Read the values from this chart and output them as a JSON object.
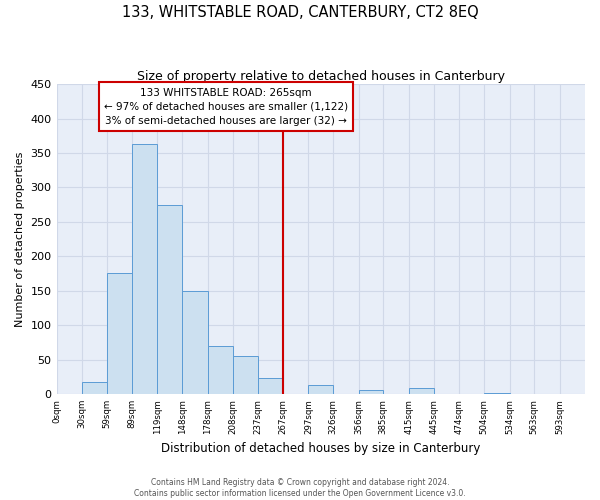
{
  "title": "133, WHITSTABLE ROAD, CANTERBURY, CT2 8EQ",
  "subtitle": "Size of property relative to detached houses in Canterbury",
  "xlabel": "Distribution of detached houses by size in Canterbury",
  "ylabel": "Number of detached properties",
  "bin_labels": [
    "0sqm",
    "30sqm",
    "59sqm",
    "89sqm",
    "119sqm",
    "148sqm",
    "178sqm",
    "208sqm",
    "237sqm",
    "267sqm",
    "297sqm",
    "326sqm",
    "356sqm",
    "385sqm",
    "415sqm",
    "445sqm",
    "474sqm",
    "504sqm",
    "534sqm",
    "563sqm",
    "593sqm"
  ],
  "bin_edges": [
    0,
    30,
    59,
    89,
    119,
    148,
    178,
    208,
    237,
    267,
    297,
    326,
    356,
    385,
    415,
    445,
    474,
    504,
    534,
    563,
    593,
    623
  ],
  "bar_heights": [
    0,
    18,
    175,
    363,
    275,
    150,
    70,
    55,
    23,
    0,
    13,
    0,
    6,
    0,
    8,
    0,
    0,
    1,
    0,
    0,
    0
  ],
  "bar_color": "#cce0f0",
  "bar_edgecolor": "#5b9bd5",
  "grid_color": "#d0d8e8",
  "bg_color": "#e8eef8",
  "vline_x": 267,
  "vline_color": "#cc0000",
  "annotation_line1": "133 WHITSTABLE ROAD: 265sqm",
  "annotation_line2": "← 97% of detached houses are smaller (1,122)",
  "annotation_line3": "3% of semi-detached houses are larger (32) →",
  "annotation_box_edgecolor": "#cc0000",
  "ylim": [
    0,
    450
  ],
  "yticks": [
    0,
    50,
    100,
    150,
    200,
    250,
    300,
    350,
    400,
    450
  ],
  "footer1": "Contains HM Land Registry data © Crown copyright and database right 2024.",
  "footer2": "Contains public sector information licensed under the Open Government Licence v3.0.",
  "title_fontsize": 10.5,
  "subtitle_fontsize": 9
}
